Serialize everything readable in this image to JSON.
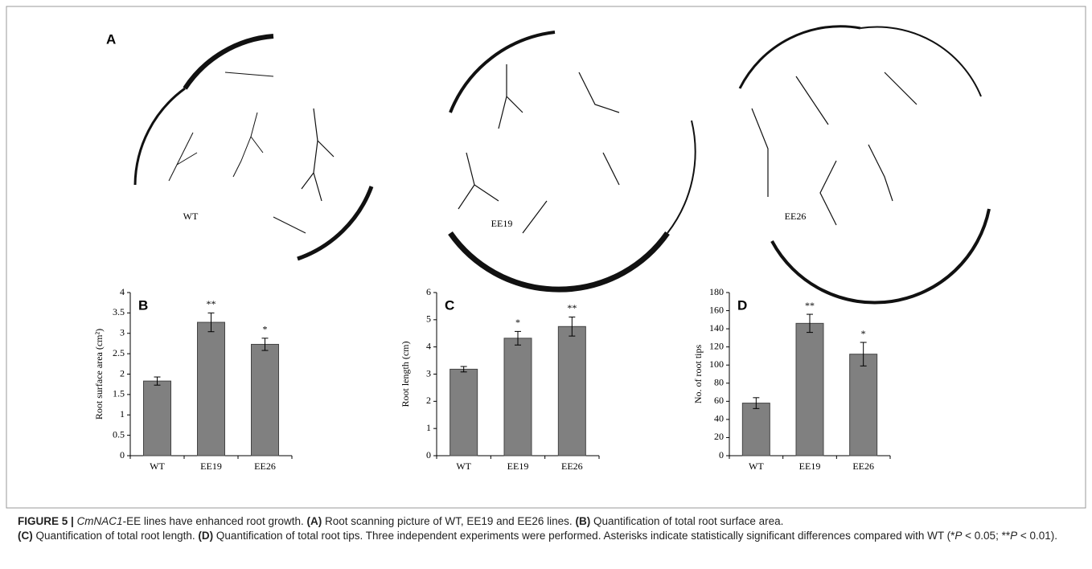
{
  "photos": {
    "panel": "A",
    "labels": [
      "WT",
      "EE19",
      "EE26"
    ]
  },
  "chart_data": [
    {
      "type": "bar",
      "panel": "B",
      "y_label": "Root surface area (cm²)",
      "categories": [
        "WT",
        "EE19",
        "EE26"
      ],
      "values": [
        1.83,
        3.27,
        2.73
      ],
      "errors": [
        0.1,
        0.23,
        0.15
      ],
      "significance": [
        null,
        "**",
        "*"
      ],
      "color": "#808080",
      "ylim": [
        0,
        4
      ],
      "yticks": [
        0,
        0.5,
        1,
        1.5,
        2,
        2.5,
        3,
        3.5,
        4
      ]
    },
    {
      "type": "bar",
      "panel": "C",
      "y_label": "Root  length (cm)",
      "categories": [
        "WT",
        "EE19",
        "EE26"
      ],
      "values": [
        3.18,
        4.32,
        4.75
      ],
      "errors": [
        0.1,
        0.25,
        0.35
      ],
      "significance": [
        null,
        "*",
        "**"
      ],
      "color": "#808080",
      "ylim": [
        0,
        6
      ],
      "yticks": [
        0,
        1,
        2,
        3,
        4,
        5,
        6
      ]
    },
    {
      "type": "bar",
      "panel": "D",
      "y_label": "No. of  root tips",
      "categories": [
        "WT",
        "EE19",
        "EE26"
      ],
      "values": [
        58,
        146,
        112
      ],
      "errors": [
        6,
        10,
        13
      ],
      "significance": [
        null,
        "**",
        "*"
      ],
      "color": "#808080",
      "ylim": [
        0,
        180
      ],
      "yticks": [
        0,
        20,
        40,
        60,
        80,
        100,
        120,
        140,
        160,
        180
      ]
    }
  ],
  "caption": [
    "FIGURE 5 |",
    "CmNAC1",
    "-EE lines have enhanced root growth.",
    "(A)",
    "Root scanning picture of WT, EE19 and EE26 lines.",
    "(B)",
    "Quantification of total root surface area.",
    "(C)",
    "Quantification of total root length.",
    "(D)",
    "Quantification of total root tips. Three independent experiments were performed. Asterisks indicate statistically significant differences compared with WT (",
    "*",
    "P",
    " < 0.05; **",
    "P",
    " < 0.01)."
  ]
}
